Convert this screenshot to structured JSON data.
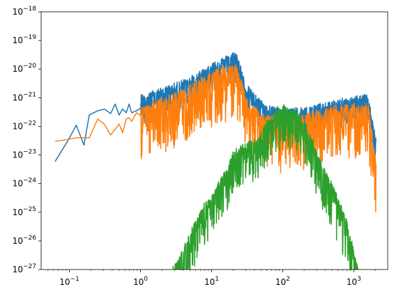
{
  "chart_data": {
    "type": "line",
    "x_scale": "log",
    "y_scale": "log",
    "xlim": [
      0.04,
      3000
    ],
    "ylim": [
      1e-27,
      1e-18
    ],
    "grid": false,
    "x_ticks": [
      {
        "value": 0.1,
        "base": "10",
        "exp": "−1"
      },
      {
        "value": 1,
        "base": "10",
        "exp": "0"
      },
      {
        "value": 10,
        "base": "10",
        "exp": "1"
      },
      {
        "value": 100,
        "base": "10",
        "exp": "2"
      },
      {
        "value": 1000,
        "base": "10",
        "exp": "3"
      }
    ],
    "y_ticks": [
      {
        "value": 1e-18,
        "base": "10",
        "exp": "−18"
      },
      {
        "value": 1e-19,
        "base": "10",
        "exp": "−19"
      },
      {
        "value": 1e-20,
        "base": "10",
        "exp": "−20"
      },
      {
        "value": 1e-21,
        "base": "10",
        "exp": "−21"
      },
      {
        "value": 1e-22,
        "base": "10",
        "exp": "−22"
      },
      {
        "value": 1e-23,
        "base": "10",
        "exp": "−23"
      },
      {
        "value": 1e-24,
        "base": "10",
        "exp": "−24"
      },
      {
        "value": 1e-25,
        "base": "10",
        "exp": "−25"
      },
      {
        "value": 1e-26,
        "base": "10",
        "exp": "−26"
      },
      {
        "value": 1e-27,
        "base": "10",
        "exp": "−27"
      }
    ],
    "series": [
      {
        "color": "#1f77b4",
        "x": [
          0.063,
          0.094,
          0.125,
          0.16,
          0.19,
          0.25,
          0.31,
          0.38,
          0.44,
          0.5,
          0.56,
          0.63,
          0.69,
          0.75,
          0.88,
          1.0,
          1.25,
          1.5,
          2.0,
          2.5,
          3.2,
          4.0,
          5.0,
          6.3,
          8.0,
          10.0,
          12.6,
          15.8,
          19.0,
          21.0,
          23.0,
          25.0,
          28.0,
          32.0,
          40.0,
          50.0,
          63.0,
          80.0,
          100,
          126,
          158,
          200,
          251,
          316,
          398,
          501,
          631,
          794,
          1000,
          1259,
          1585,
          1900,
          2000,
          2050
        ],
        "y": [
          6e-24,
          3e-23,
          1.1e-22,
          2.2e-23,
          2.5e-22,
          3.5e-22,
          4e-22,
          2.8e-22,
          6e-22,
          2.5e-22,
          4e-22,
          3e-22,
          6e-22,
          3e-22,
          3.5e-22,
          1.2e-21,
          1.3e-21,
          1.6e-21,
          2e-21,
          2.5e-21,
          3e-21,
          4e-21,
          5e-21,
          7e-21,
          1e-20,
          1.5e-20,
          2e-20,
          2.5e-20,
          3e-20,
          4e-20,
          3e-20,
          1.5e-20,
          5e-21,
          2.5e-21,
          1.3e-21,
          7e-22,
          5e-22,
          4.5e-22,
          4e-22,
          4e-22,
          4.2e-22,
          4.5e-22,
          5e-22,
          5.5e-22,
          6e-22,
          7e-22,
          8e-22,
          9e-22,
          1e-21,
          1.1e-21,
          1.2e-21,
          1e-22,
          5e-23,
          3e-23
        ],
        "noise": 0.35,
        "noise_start": 0.9
      },
      {
        "color": "#ff7f0e",
        "x": [
          0.063,
          0.094,
          0.125,
          0.16,
          0.19,
          0.25,
          0.31,
          0.38,
          0.44,
          0.5,
          0.56,
          0.63,
          0.69,
          0.75,
          0.88,
          1.0,
          1.25,
          1.5,
          2.0,
          2.5,
          3.2,
          4.0,
          5.0,
          6.3,
          8.0,
          10.0,
          12.6,
          15.8,
          19.0,
          21.0,
          23.0,
          25.0,
          28.0,
          32.0,
          40.0,
          50.0,
          63.0,
          80.0,
          100,
          126,
          158,
          200,
          251,
          316,
          398,
          501,
          631,
          794,
          1000,
          1259,
          1585,
          1900,
          2000,
          2050
        ],
        "y": [
          3e-23,
          3.5e-23,
          4e-23,
          4e-23,
          4e-23,
          1.8e-22,
          1.2e-22,
          5e-23,
          8e-23,
          1.2e-22,
          6e-23,
          1.8e-22,
          2e-22,
          1.5e-22,
          3e-22,
          4e-22,
          5e-22,
          6e-22,
          8e-22,
          1e-21,
          1.3e-21,
          1.8e-21,
          2.5e-21,
          3.5e-21,
          5e-21,
          7e-21,
          9e-21,
          1.1e-20,
          1.3e-20,
          1.5e-20,
          1e-20,
          5e-21,
          2e-21,
          9e-22,
          4e-22,
          2.5e-22,
          2e-22,
          1.8e-22,
          1.7e-22,
          1.8e-22,
          2e-22,
          2.4e-22,
          2.8e-22,
          3.2e-22,
          3.6e-22,
          4e-22,
          4.4e-22,
          4.8e-22,
          5.2e-22,
          5.6e-22,
          6e-22,
          2e-23,
          8e-24,
          5e-24
        ],
        "noise": 0.6,
        "noise_start": 0.9
      },
      {
        "color": "#2ca02c",
        "x": [
          2.8,
          3.5,
          4.5,
          6.0,
          8.0,
          10.0,
          13.0,
          16.0,
          20.0,
          25.0,
          30.0,
          40.0,
          50.0,
          63.0,
          80.0,
          100,
          126,
          158,
          200,
          251,
          316,
          398,
          501,
          631,
          794,
          1000,
          1150
        ],
        "y": [
          1e-27,
          3e-27,
          1e-26,
          5e-26,
          2e-25,
          3e-25,
          1.5e-24,
          3e-24,
          1.2e-23,
          1.8e-23,
          2.2e-23,
          3e-23,
          6e-23,
          1.5e-22,
          4e-22,
          4.5e-22,
          4e-22,
          3e-22,
          1.5e-22,
          4e-23,
          1e-23,
          3e-24,
          8e-25,
          2e-25,
          5e-26,
          5e-27,
          1e-27
        ],
        "noise": 0.5,
        "noise_start": 2.8
      }
    ]
  }
}
